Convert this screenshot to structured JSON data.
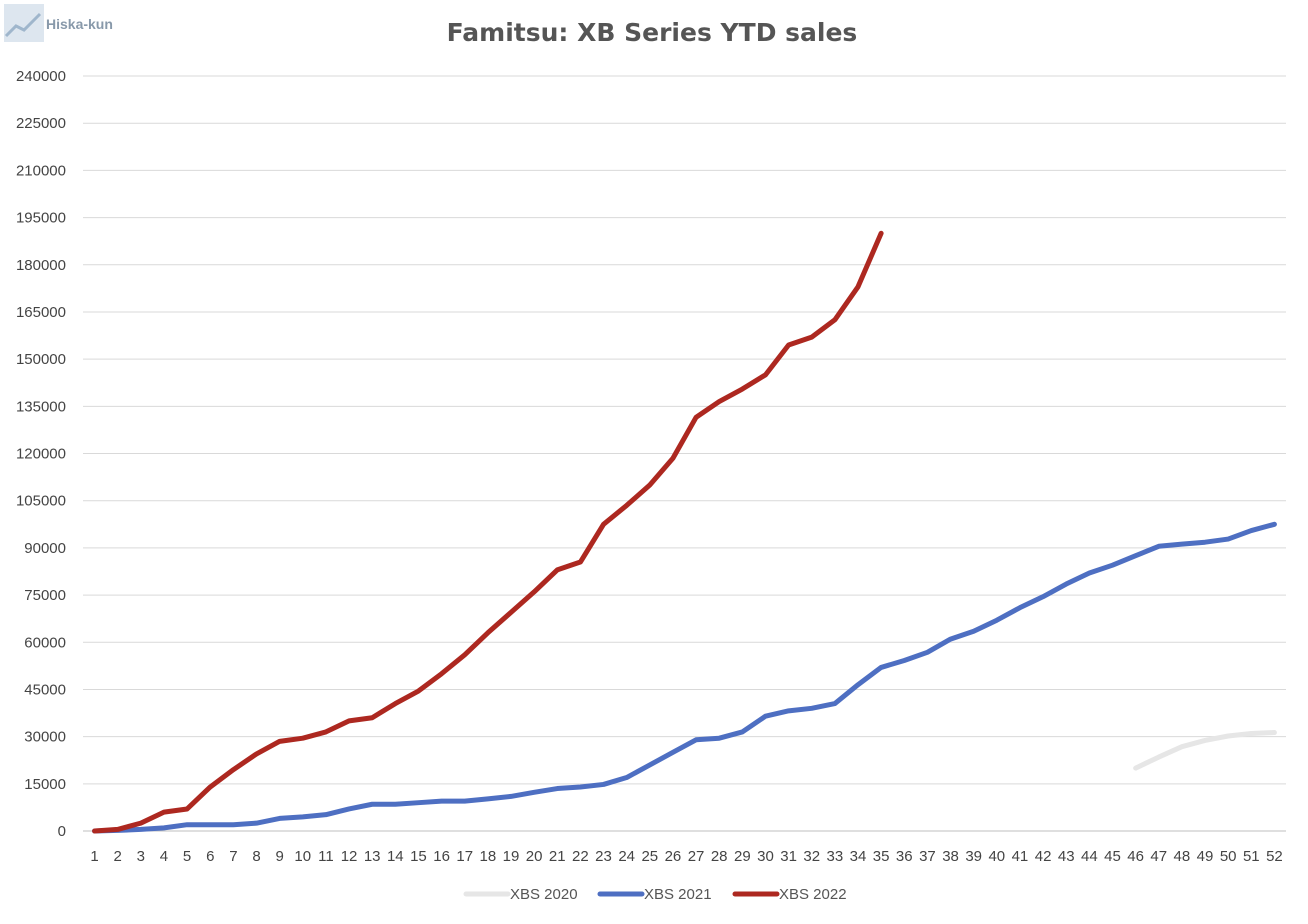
{
  "watermark": {
    "text": "Hiska-kun"
  },
  "chart_data": {
    "type": "line",
    "title": "Famitsu: XB Series YTD sales",
    "xlabel": "",
    "ylabel": "",
    "ylim": [
      0,
      240000
    ],
    "yticks": [
      0,
      15000,
      30000,
      45000,
      60000,
      75000,
      90000,
      105000,
      120000,
      135000,
      150000,
      165000,
      180000,
      195000,
      210000,
      225000,
      240000
    ],
    "categories": [
      1,
      2,
      3,
      4,
      5,
      6,
      7,
      8,
      9,
      10,
      11,
      12,
      13,
      14,
      15,
      16,
      17,
      18,
      19,
      20,
      21,
      22,
      23,
      24,
      25,
      26,
      27,
      28,
      29,
      30,
      31,
      32,
      33,
      34,
      35,
      36,
      37,
      38,
      39,
      40,
      41,
      42,
      43,
      44,
      45,
      46,
      47,
      48,
      49,
      50,
      51,
      52
    ],
    "grid": true,
    "legend_position": "bottom",
    "series": [
      {
        "name": "XBS 2020",
        "color": "#e6e6e6",
        "values": [
          null,
          null,
          null,
          null,
          null,
          null,
          null,
          null,
          null,
          null,
          null,
          null,
          null,
          null,
          null,
          null,
          null,
          null,
          null,
          null,
          null,
          null,
          null,
          null,
          null,
          null,
          null,
          null,
          null,
          null,
          null,
          null,
          null,
          null,
          null,
          null,
          null,
          null,
          null,
          null,
          null,
          null,
          null,
          null,
          null,
          20000,
          23500,
          26800,
          28800,
          30200,
          31000,
          31300
        ]
      },
      {
        "name": "XBS 2021",
        "color": "#4e6fc2",
        "values": [
          0,
          200,
          500,
          1000,
          2000,
          2000,
          2000,
          2500,
          4000,
          4500,
          5200,
          7000,
          8500,
          8500,
          9000,
          9500,
          9500,
          10200,
          11000,
          12300,
          13500,
          14000,
          14800,
          17000,
          21000,
          25000,
          29000,
          29500,
          31500,
          36500,
          38200,
          39000,
          40500,
          46500,
          52000,
          54200,
          56800,
          61000,
          63500,
          67000,
          71000,
          74500,
          78500,
          82000,
          84500,
          87500,
          90500,
          91200,
          91800,
          92800,
          95500,
          97500
        ]
      },
      {
        "name": "XBS 2022",
        "color": "#ad2820",
        "values": [
          0,
          500,
          2500,
          6000,
          7000,
          14000,
          19500,
          24500,
          28500,
          29500,
          31500,
          35000,
          36000,
          40500,
          44500,
          50000,
          56000,
          63000,
          69500,
          76000,
          83000,
          85500,
          97500,
          103500,
          110000,
          118500,
          131500,
          136500,
          140500,
          145000,
          154500,
          157000,
          162500,
          173000,
          190000,
          null,
          null,
          null,
          null,
          null,
          null,
          null,
          null,
          null,
          null,
          null,
          null,
          null,
          null,
          null,
          null,
          null
        ]
      }
    ]
  }
}
